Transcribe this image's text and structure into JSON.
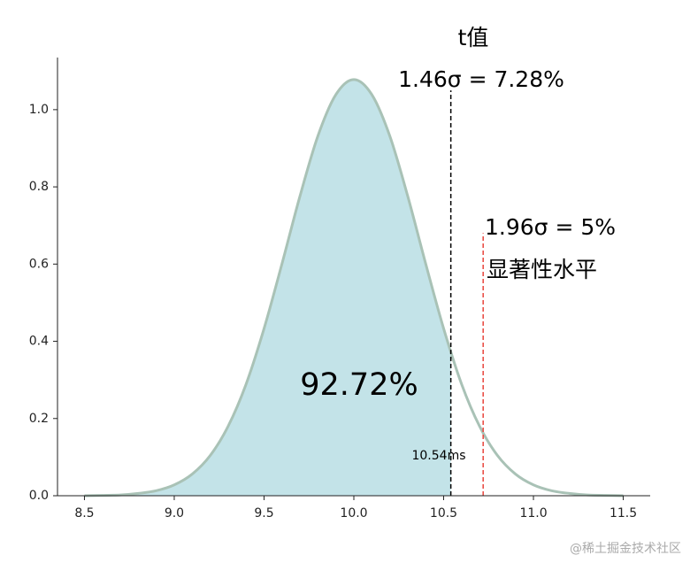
{
  "chart_data": {
    "type": "area",
    "x": [
      8.5,
      8.6,
      8.7,
      8.8,
      8.9,
      9.0,
      9.1,
      9.2,
      9.3,
      9.4,
      9.5,
      9.6,
      9.7,
      9.8,
      9.9,
      10.0,
      10.1,
      10.2,
      10.3,
      10.4,
      10.5,
      10.6,
      10.7,
      10.8,
      10.9,
      11.0,
      11.1,
      11.2,
      11.3,
      11.4,
      11.5
    ],
    "values": [
      0,
      0.001,
      0.002,
      0.006,
      0.013,
      0.028,
      0.056,
      0.104,
      0.18,
      0.289,
      0.433,
      0.601,
      0.776,
      0.932,
      1.039,
      1.078,
      1.039,
      0.932,
      0.776,
      0.601,
      0.433,
      0.289,
      0.18,
      0.104,
      0.056,
      0.028,
      0.013,
      0.006,
      0.002,
      0.001,
      0
    ],
    "color": "#a9c2b6",
    "fill_color": "#c3e3e8",
    "fill_to": 10.54,
    "xlim": [
      8.35,
      11.65
    ],
    "xticks": [
      {
        "value": 8.5,
        "label": "8.5"
      },
      {
        "value": 9.0,
        "label": "9.0"
      },
      {
        "value": 9.5,
        "label": "9.5"
      },
      {
        "value": 10.0,
        "label": "10.0"
      },
      {
        "value": 10.5,
        "label": "10.5"
      },
      {
        "value": 11.0,
        "label": "11.0"
      },
      {
        "value": 11.5,
        "label": "11.5"
      }
    ],
    "ylim": [
      0,
      1.135
    ],
    "yticks": [
      {
        "value": 0,
        "label": "0.0"
      },
      {
        "value": 0.2,
        "label": "0.2"
      },
      {
        "value": 0.4,
        "label": "0.4"
      },
      {
        "value": 0.6,
        "label": "0.6"
      },
      {
        "value": 0.8,
        "label": "0.8"
      },
      {
        "value": 1.0,
        "label": "1.0"
      }
    ],
    "vlines": [
      {
        "x": 10.54,
        "ymax": 1.05,
        "color": "#000000"
      },
      {
        "x": 10.72,
        "ymax": 0.68,
        "color": "#e8453c"
      }
    ],
    "annotations": [
      "t值",
      "1.46σ = 7.28%",
      "1.96σ = 5%",
      "显著性水平",
      "92.72%",
      "10.54ms"
    ],
    "watermark": "@稀土掘金技术社区"
  }
}
